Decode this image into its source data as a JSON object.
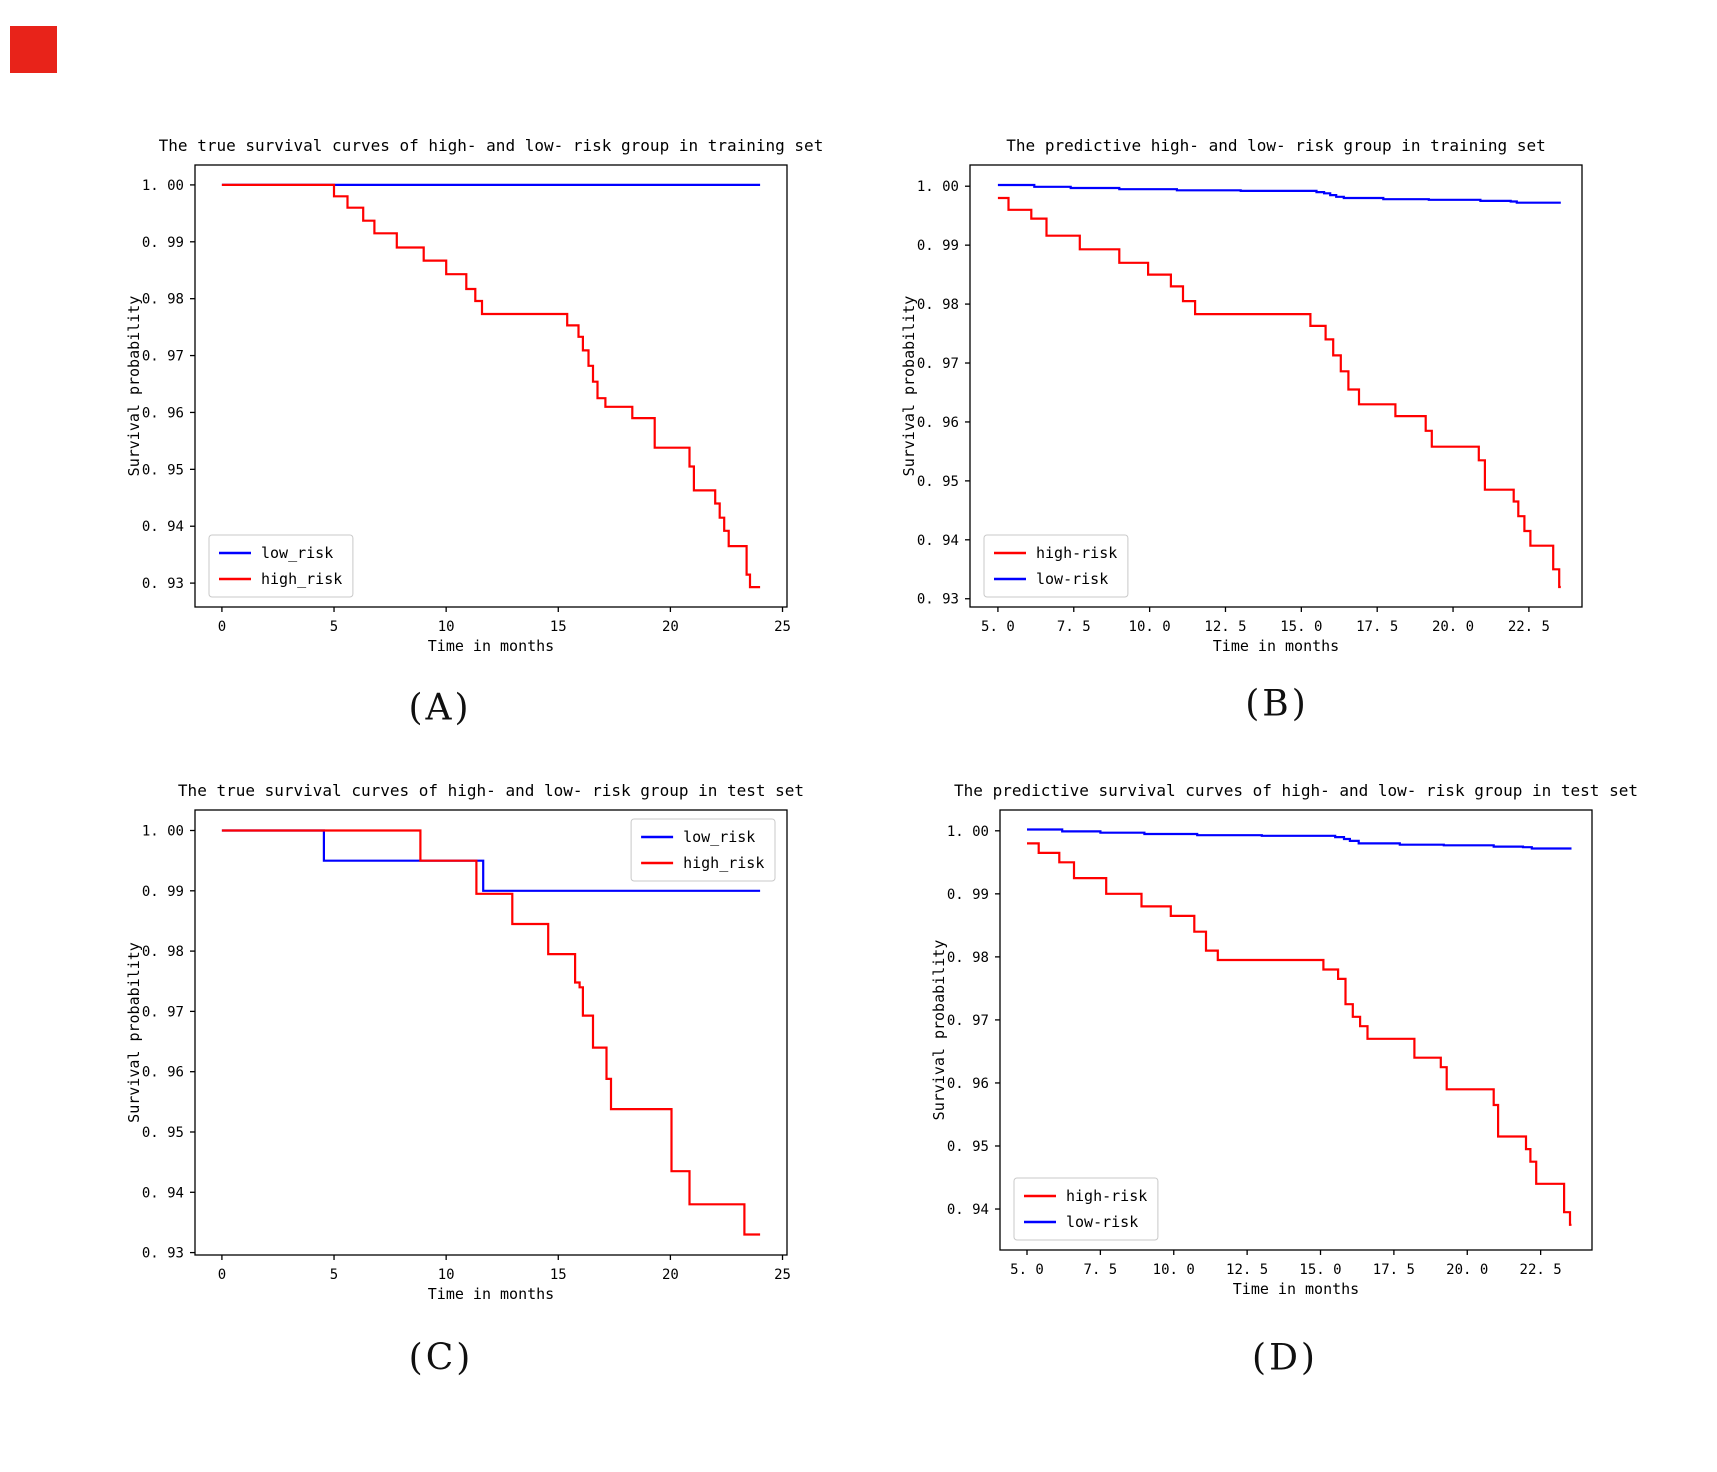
{
  "page": {
    "background": "#ffffff",
    "corner_marker_color": "#e8231a"
  },
  "colors": {
    "high_risk_red": "#ff0000",
    "low_risk_blue": "#0000ff",
    "axis_black": "#000000",
    "legend_border": "#c9c9c9"
  },
  "chart_data": [
    {
      "id": "A",
      "type": "line",
      "caption": "(A)",
      "title": "The true survival curves of high- and low- risk group in training set",
      "xlabel": "Time in months",
      "ylabel": "Survival probability",
      "xlim": [
        -1.2,
        25.2
      ],
      "ylim": [
        0.9258,
        1.0035
      ],
      "grid": false,
      "xticks": [
        {
          "v": 0,
          "label": "0"
        },
        {
          "v": 5,
          "label": "5"
        },
        {
          "v": 10,
          "label": "10"
        },
        {
          "v": 15,
          "label": "15"
        },
        {
          "v": 20,
          "label": "20"
        },
        {
          "v": 25,
          "label": "25"
        }
      ],
      "yticks": [
        {
          "v": 1.0,
          "label": "1. 00"
        },
        {
          "v": 0.99,
          "label": "0. 99"
        },
        {
          "v": 0.98,
          "label": "0. 98"
        },
        {
          "v": 0.97,
          "label": "0. 97"
        },
        {
          "v": 0.96,
          "label": "0. 96"
        },
        {
          "v": 0.95,
          "label": "0. 95"
        },
        {
          "v": 0.94,
          "label": "0. 94"
        },
        {
          "v": 0.93,
          "label": "0. 93"
        }
      ],
      "legend": {
        "position": "lower-left",
        "entries": [
          {
            "label": "low_risk",
            "series": "low_risk"
          },
          {
            "label": "high_risk",
            "series": "high_risk"
          }
        ]
      },
      "series": [
        {
          "name": "low_risk",
          "color": "#0000ff",
          "step_points": [
            [
              0,
              1.0
            ],
            [
              24,
              1.0
            ]
          ]
        },
        {
          "name": "high_risk",
          "color": "#ff0000",
          "step_points": [
            [
              0,
              1.0
            ],
            [
              5.0,
              0.998
            ],
            [
              5.6,
              0.996
            ],
            [
              6.3,
              0.9937
            ],
            [
              6.8,
              0.9915
            ],
            [
              7.8,
              0.989
            ],
            [
              9.0,
              0.9867
            ],
            [
              10.0,
              0.9843
            ],
            [
              10.9,
              0.9817
            ],
            [
              11.3,
              0.9796
            ],
            [
              11.6,
              0.9773
            ],
            [
              15.4,
              0.9753
            ],
            [
              15.9,
              0.9733
            ],
            [
              16.1,
              0.9709
            ],
            [
              16.35,
              0.9682
            ],
            [
              16.55,
              0.9654
            ],
            [
              16.75,
              0.9625
            ],
            [
              17.1,
              0.961
            ],
            [
              18.3,
              0.959
            ],
            [
              19.3,
              0.9538
            ],
            [
              20.85,
              0.9505
            ],
            [
              21.05,
              0.9463
            ],
            [
              22.0,
              0.944
            ],
            [
              22.2,
              0.9415
            ],
            [
              22.4,
              0.9392
            ],
            [
              22.6,
              0.9365
            ],
            [
              23.4,
              0.9315
            ],
            [
              23.55,
              0.9293
            ],
            [
              24,
              0.9293
            ]
          ]
        }
      ]
    },
    {
      "id": "B",
      "type": "line",
      "caption": "(B)",
      "title": "The predictive high- and low- risk group in training set",
      "xlabel": "Time in months",
      "ylabel": "Survival probability",
      "xlim": [
        4.08,
        24.25
      ],
      "ylim": [
        0.9286,
        1.0036
      ],
      "grid": false,
      "xticks": [
        {
          "v": 5.0,
          "label": "5. 0"
        },
        {
          "v": 7.5,
          "label": "7. 5"
        },
        {
          "v": 10.0,
          "label": "10. 0"
        },
        {
          "v": 12.5,
          "label": "12. 5"
        },
        {
          "v": 15.0,
          "label": "15. 0"
        },
        {
          "v": 17.5,
          "label": "17. 5"
        },
        {
          "v": 20.0,
          "label": "20. 0"
        },
        {
          "v": 22.5,
          "label": "22. 5"
        }
      ],
      "yticks": [
        {
          "v": 1.0,
          "label": "1. 00"
        },
        {
          "v": 0.99,
          "label": "0. 99"
        },
        {
          "v": 0.98,
          "label": "0. 98"
        },
        {
          "v": 0.97,
          "label": "0. 97"
        },
        {
          "v": 0.96,
          "label": "0. 96"
        },
        {
          "v": 0.95,
          "label": "0. 95"
        },
        {
          "v": 0.94,
          "label": "0. 94"
        },
        {
          "v": 0.93,
          "label": "0. 93"
        }
      ],
      "legend": {
        "position": "lower-left",
        "entries": [
          {
            "label": "high-risk",
            "series": "high-risk"
          },
          {
            "label": "low-risk",
            "series": "low-risk"
          }
        ]
      },
      "series": [
        {
          "name": "high-risk",
          "color": "#ff0000",
          "step_points": [
            [
              5.0,
              0.998
            ],
            [
              5.35,
              0.996
            ],
            [
              6.1,
              0.9945
            ],
            [
              6.6,
              0.9916
            ],
            [
              7.7,
              0.9893
            ],
            [
              9.0,
              0.987
            ],
            [
              9.95,
              0.985
            ],
            [
              10.7,
              0.983
            ],
            [
              11.1,
              0.9805
            ],
            [
              11.5,
              0.9783
            ],
            [
              15.3,
              0.9763
            ],
            [
              15.8,
              0.974
            ],
            [
              16.05,
              0.9713
            ],
            [
              16.3,
              0.9686
            ],
            [
              16.55,
              0.9655
            ],
            [
              16.9,
              0.963
            ],
            [
              18.1,
              0.961
            ],
            [
              19.1,
              0.9585
            ],
            [
              19.3,
              0.9558
            ],
            [
              20.85,
              0.9535
            ],
            [
              21.05,
              0.9485
            ],
            [
              22.0,
              0.9465
            ],
            [
              22.15,
              0.944
            ],
            [
              22.35,
              0.9415
            ],
            [
              22.55,
              0.939
            ],
            [
              23.3,
              0.935
            ],
            [
              23.5,
              0.932
            ],
            [
              23.55,
              0.932
            ]
          ]
        },
        {
          "name": "low-risk",
          "color": "#0000ff",
          "step_points": [
            [
              5.0,
              1.0002
            ],
            [
              6.2,
              0.9999
            ],
            [
              7.4,
              0.9997
            ],
            [
              9.0,
              0.9995
            ],
            [
              10.9,
              0.9993
            ],
            [
              13.0,
              0.9992
            ],
            [
              15.5,
              0.999
            ],
            [
              15.75,
              0.9988
            ],
            [
              15.95,
              0.9985
            ],
            [
              16.15,
              0.9982
            ],
            [
              16.4,
              0.998
            ],
            [
              17.7,
              0.9978
            ],
            [
              19.2,
              0.9977
            ],
            [
              20.9,
              0.9975
            ],
            [
              21.9,
              0.9974
            ],
            [
              22.1,
              0.9972
            ],
            [
              23.55,
              0.9972
            ]
          ]
        }
      ]
    },
    {
      "id": "C",
      "type": "line",
      "caption": "(C)",
      "title": "The true survival curves of high- and low- risk group in test set",
      "xlabel": "Time in months",
      "ylabel": "Survival probability",
      "xlim": [
        -1.2,
        25.2
      ],
      "ylim": [
        0.9296,
        1.0034
      ],
      "grid": false,
      "xticks": [
        {
          "v": 0,
          "label": "0"
        },
        {
          "v": 5,
          "label": "5"
        },
        {
          "v": 10,
          "label": "10"
        },
        {
          "v": 15,
          "label": "15"
        },
        {
          "v": 20,
          "label": "20"
        },
        {
          "v": 25,
          "label": "25"
        }
      ],
      "yticks": [
        {
          "v": 1.0,
          "label": "1. 00"
        },
        {
          "v": 0.99,
          "label": "0. 99"
        },
        {
          "v": 0.98,
          "label": "0. 98"
        },
        {
          "v": 0.97,
          "label": "0. 97"
        },
        {
          "v": 0.96,
          "label": "0. 96"
        },
        {
          "v": 0.95,
          "label": "0. 95"
        },
        {
          "v": 0.94,
          "label": "0. 94"
        },
        {
          "v": 0.93,
          "label": "0. 93"
        }
      ],
      "legend": {
        "position": "upper-right",
        "entries": [
          {
            "label": "low_risk",
            "series": "low_risk"
          },
          {
            "label": "high_risk",
            "series": "high_risk"
          }
        ]
      },
      "series": [
        {
          "name": "low_risk",
          "color": "#0000ff",
          "step_points": [
            [
              0,
              1.0
            ],
            [
              4.55,
              0.995
            ],
            [
              11.65,
              0.99
            ],
            [
              24,
              0.99
            ]
          ]
        },
        {
          "name": "high_risk",
          "color": "#ff0000",
          "step_points": [
            [
              0,
              1.0
            ],
            [
              8.85,
              0.995
            ],
            [
              11.35,
              0.9895
            ],
            [
              12.95,
              0.9845
            ],
            [
              14.55,
              0.9795
            ],
            [
              15.75,
              0.9748
            ],
            [
              15.95,
              0.974
            ],
            [
              16.1,
              0.9693
            ],
            [
              16.55,
              0.964
            ],
            [
              17.15,
              0.9588
            ],
            [
              17.35,
              0.9538
            ],
            [
              20.05,
              0.9435
            ],
            [
              20.85,
              0.938
            ],
            [
              23.3,
              0.933
            ],
            [
              24,
              0.933
            ]
          ]
        }
      ]
    },
    {
      "id": "D",
      "type": "line",
      "caption": "(D)",
      "title": "The predictive survival curves of high- and low- risk group in test set",
      "xlabel": "Time in months",
      "ylabel": "Survival probability",
      "xlim": [
        4.08,
        24.25
      ],
      "ylim": [
        0.9335,
        1.0033
      ],
      "grid": false,
      "xticks": [
        {
          "v": 5.0,
          "label": "5. 0"
        },
        {
          "v": 7.5,
          "label": "7. 5"
        },
        {
          "v": 10.0,
          "label": "10. 0"
        },
        {
          "v": 12.5,
          "label": "12. 5"
        },
        {
          "v": 15.0,
          "label": "15. 0"
        },
        {
          "v": 17.5,
          "label": "17. 5"
        },
        {
          "v": 20.0,
          "label": "20. 0"
        },
        {
          "v": 22.5,
          "label": "22. 5"
        }
      ],
      "yticks": [
        {
          "v": 1.0,
          "label": "1. 00"
        },
        {
          "v": 0.99,
          "label": "0. 99"
        },
        {
          "v": 0.98,
          "label": "0. 98"
        },
        {
          "v": 0.97,
          "label": "0. 97"
        },
        {
          "v": 0.96,
          "label": "0. 96"
        },
        {
          "v": 0.95,
          "label": "0. 95"
        },
        {
          "v": 0.94,
          "label": "0. 94"
        }
      ],
      "legend": {
        "position": "lower-left",
        "entries": [
          {
            "label": "high-risk",
            "series": "high-risk"
          },
          {
            "label": "low-risk",
            "series": "low-risk"
          }
        ]
      },
      "series": [
        {
          "name": "high-risk",
          "color": "#ff0000",
          "step_points": [
            [
              5.0,
              0.998
            ],
            [
              5.4,
              0.9965
            ],
            [
              6.1,
              0.995
            ],
            [
              6.6,
              0.9925
            ],
            [
              7.7,
              0.99
            ],
            [
              8.9,
              0.988
            ],
            [
              9.9,
              0.9865
            ],
            [
              10.7,
              0.984
            ],
            [
              11.1,
              0.981
            ],
            [
              11.5,
              0.9795
            ],
            [
              15.1,
              0.978
            ],
            [
              15.6,
              0.9765
            ],
            [
              15.85,
              0.9725
            ],
            [
              16.1,
              0.9705
            ],
            [
              16.35,
              0.969
            ],
            [
              16.6,
              0.967
            ],
            [
              18.2,
              0.964
            ],
            [
              19.1,
              0.9625
            ],
            [
              19.3,
              0.959
            ],
            [
              20.9,
              0.9565
            ],
            [
              21.05,
              0.9515
            ],
            [
              22.0,
              0.9495
            ],
            [
              22.15,
              0.9475
            ],
            [
              22.35,
              0.944
            ],
            [
              23.3,
              0.9395
            ],
            [
              23.5,
              0.9375
            ],
            [
              23.55,
              0.9375
            ]
          ]
        },
        {
          "name": "low-risk",
          "color": "#0000ff",
          "step_points": [
            [
              5.0,
              1.0002
            ],
            [
              6.2,
              0.9999
            ],
            [
              7.5,
              0.9997
            ],
            [
              9.0,
              0.9995
            ],
            [
              10.8,
              0.9993
            ],
            [
              13.0,
              0.9992
            ],
            [
              15.5,
              0.999
            ],
            [
              15.8,
              0.9987
            ],
            [
              16.0,
              0.9984
            ],
            [
              16.3,
              0.998
            ],
            [
              17.7,
              0.9978
            ],
            [
              19.2,
              0.9977
            ],
            [
              20.9,
              0.9975
            ],
            [
              21.9,
              0.9974
            ],
            [
              22.2,
              0.9972
            ],
            [
              23.55,
              0.9972
            ]
          ]
        }
      ]
    }
  ]
}
